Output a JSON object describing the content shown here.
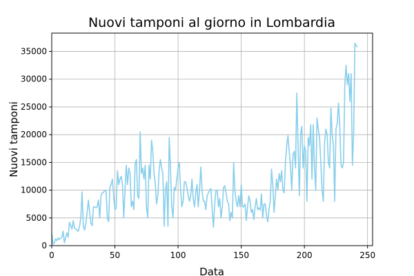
{
  "chart_data": {
    "type": "line",
    "title": "Nuovi tamponi al giorno in Lombardia",
    "x_label": "Data",
    "y_label": "Nuovi tamponi",
    "color": "#87ceeb",
    "grid": true,
    "xlim": [
      0,
      254
    ],
    "ylim": [
      0,
      38300
    ],
    "xticks": [
      0,
      50,
      100,
      150,
      200,
      250
    ],
    "yticks": [
      0,
      5000,
      10000,
      15000,
      20000,
      25000,
      30000,
      35000
    ],
    "x": [
      0,
      1,
      2,
      3,
      4,
      5,
      6,
      7,
      8,
      9,
      10,
      11,
      12,
      13,
      14,
      15,
      16,
      17,
      18,
      19,
      20,
      21,
      22,
      23,
      24,
      25,
      26,
      27,
      28,
      29,
      30,
      31,
      32,
      33,
      34,
      35,
      36,
      37,
      38,
      39,
      40,
      41,
      42,
      43,
      44,
      45,
      46,
      47,
      48,
      49,
      50,
      51,
      52,
      53,
      54,
      55,
      56,
      57,
      58,
      59,
      60,
      61,
      62,
      63,
      64,
      65,
      66,
      67,
      68,
      69,
      70,
      71,
      72,
      73,
      74,
      75,
      76,
      77,
      78,
      79,
      80,
      81,
      82,
      83,
      84,
      85,
      86,
      87,
      88,
      89,
      90,
      91,
      92,
      93,
      94,
      95,
      96,
      97,
      98,
      99,
      100,
      101,
      102,
      103,
      104,
      105,
      106,
      107,
      108,
      109,
      110,
      111,
      112,
      113,
      114,
      115,
      116,
      117,
      118,
      119,
      120,
      121,
      122,
      123,
      124,
      125,
      126,
      127,
      128,
      129,
      130,
      131,
      132,
      133,
      134,
      135,
      136,
      137,
      138,
      139,
      140,
      141,
      142,
      143,
      144,
      145,
      146,
      147,
      148,
      149,
      150,
      151,
      152,
      153,
      154,
      155,
      156,
      157,
      158,
      159,
      160,
      161,
      162,
      163,
      164,
      165,
      166,
      167,
      168,
      169,
      170,
      171,
      172,
      173,
      174,
      175,
      176,
      177,
      178,
      179,
      180,
      181,
      182,
      183,
      184,
      185,
      186,
      187,
      188,
      189,
      190,
      191,
      192,
      193,
      194,
      195,
      196,
      197,
      198,
      199,
      200,
      201,
      202,
      203,
      204,
      205,
      206,
      207,
      208,
      209,
      210,
      211,
      212,
      213,
      214,
      215,
      216,
      217,
      218,
      219,
      220,
      221,
      222,
      223,
      224,
      225,
      226,
      227,
      228,
      229,
      230,
      231,
      232,
      233,
      234,
      235,
      236,
      237,
      238,
      239,
      240,
      241,
      242
    ],
    "values": [
      2200,
      300,
      500,
      1200,
      900,
      1400,
      1100,
      1300,
      1600,
      2600,
      500,
      1500,
      2300,
      1500,
      4200,
      3600,
      3000,
      4500,
      3200,
      3000,
      2800,
      2600,
      3500,
      5000,
      9700,
      3500,
      2800,
      4000,
      6000,
      8200,
      6000,
      4000,
      3600,
      7000,
      7000,
      6800,
      7000,
      8200,
      5000,
      9000,
      9500,
      9600,
      10000,
      9800,
      5000,
      4300,
      10500,
      11000,
      12000,
      9000,
      6500,
      6700,
      13500,
      11000,
      12000,
      12500,
      11000,
      5000,
      10000,
      14500,
      11000,
      14000,
      13000,
      7000,
      8000,
      6500,
      14700,
      15500,
      9000,
      8500,
      20500,
      13000,
      14000,
      12000,
      14500,
      7000,
      5000,
      14500,
      12000,
      19000,
      17000,
      13000,
      11000,
      7500,
      9000,
      13500,
      15500,
      14000,
      13000,
      3500,
      10000,
      11500,
      3500,
      19500,
      14000,
      7000,
      5000,
      10500,
      10000,
      12000,
      14000,
      15000,
      10000,
      7000,
      8000,
      11500,
      11500,
      10500,
      9000,
      8000,
      9000,
      12000,
      8500,
      7000,
      9500,
      11000,
      7000,
      10000,
      14200,
      10000,
      8000,
      8000,
      6500,
      9000,
      9500,
      10000,
      10300,
      6500,
      3300,
      7500,
      10000,
      10000,
      7000,
      8500,
      5000,
      7000,
      10500,
      10800,
      9500,
      8000,
      7500,
      4500,
      6000,
      5000,
      15000,
      10000,
      8000,
      7000,
      9000,
      7000,
      11000,
      7000,
      7000,
      7500,
      4500,
      7000,
      9000,
      8000,
      6000,
      6500,
      4700,
      7000,
      8500,
      6500,
      6800,
      6400,
      9300,
      5000,
      7500,
      7500,
      5500,
      4300,
      6500,
      8000,
      13800,
      11000,
      6000,
      9000,
      12000,
      10000,
      13000,
      11500,
      13500,
      10000,
      9500,
      15000,
      18000,
      19800,
      17000,
      14500,
      10000,
      16500,
      17000,
      14000,
      27500,
      18000,
      9000,
      20000,
      21500,
      14000,
      18000,
      17000,
      8000,
      19500,
      18000,
      21800,
      12000,
      21800,
      14000,
      10000,
      23000,
      21000,
      19500,
      15000,
      10000,
      8000,
      18500,
      21000,
      20000,
      15000,
      14000,
      24800,
      20000,
      18000,
      8000,
      21000,
      22000,
      25700,
      21500,
      14500,
      14000,
      15000,
      29000,
      32500,
      29000,
      31000,
      26000,
      31000,
      14500,
      20000,
      36500,
      36000,
      35800
    ]
  }
}
